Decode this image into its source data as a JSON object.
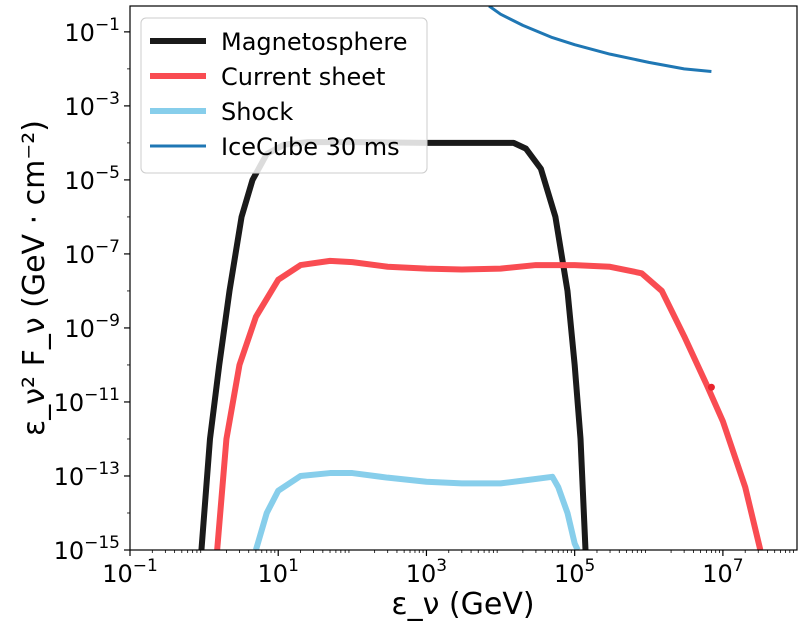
{
  "chart_data": {
    "type": "line",
    "title": "",
    "xlabel": "ε_ν (GeV)",
    "ylabel": "ε_ν² F_ν (GeV · cm⁻²)",
    "xscale": "log",
    "yscale": "log",
    "xlim": [
      0.1,
      100000000
    ],
    "ylim": [
      1e-15,
      0.5
    ],
    "grid": false,
    "legend_position": "top-left",
    "x_ticks": [
      {
        "value": 0.1,
        "base": "10",
        "exp": "−1"
      },
      {
        "value": 10,
        "base": "10",
        "exp": "1"
      },
      {
        "value": 1000,
        "base": "10",
        "exp": "3"
      },
      {
        "value": 100000,
        "base": "10",
        "exp": "5"
      },
      {
        "value": 10000000,
        "base": "10",
        "exp": "7"
      }
    ],
    "y_ticks": [
      {
        "value": 1e-15,
        "base": "10",
        "exp": "−15"
      },
      {
        "value": 1e-13,
        "base": "10",
        "exp": "−13"
      },
      {
        "value": 1e-11,
        "base": "10",
        "exp": "−11"
      },
      {
        "value": 1e-09,
        "base": "10",
        "exp": "−9"
      },
      {
        "value": 1e-07,
        "base": "10",
        "exp": "−7"
      },
      {
        "value": 1e-05,
        "base": "10",
        "exp": "−5"
      },
      {
        "value": 0.001,
        "base": "10",
        "exp": "−3"
      },
      {
        "value": 0.1,
        "base": "10",
        "exp": "−1"
      }
    ],
    "series": [
      {
        "name": "Magnetosphere",
        "color": "#1a1a1a",
        "width": 6,
        "points": [
          [
            0.92,
            1e-15
          ],
          [
            1.2,
            1e-12
          ],
          [
            1.6,
            1e-10
          ],
          [
            2.2,
            1e-08
          ],
          [
            3.2,
            1e-06
          ],
          [
            4.5,
            1e-05
          ],
          [
            7,
            5e-05
          ],
          [
            12,
            9e-05
          ],
          [
            25,
            0.000105
          ],
          [
            100,
            0.000105
          ],
          [
            1000,
            0.0001
          ],
          [
            10000,
            0.0001
          ],
          [
            15000,
            0.0001
          ],
          [
            22000,
            7e-05
          ],
          [
            35000,
            2e-05
          ],
          [
            55000,
            1e-06
          ],
          [
            80000,
            1e-08
          ],
          [
            100000,
            1e-10
          ],
          [
            120000,
            1e-12
          ],
          [
            140000,
            1e-15
          ]
        ]
      },
      {
        "name": "Current sheet",
        "color": "#f94c52",
        "width": 6,
        "points": [
          [
            1.5,
            1e-15
          ],
          [
            2,
            1e-12
          ],
          [
            3,
            1e-10
          ],
          [
            5,
            2e-09
          ],
          [
            10,
            2e-08
          ],
          [
            20,
            5e-08
          ],
          [
            50,
            6.5e-08
          ],
          [
            100,
            6e-08
          ],
          [
            300,
            4.5e-08
          ],
          [
            1000,
            4e-08
          ],
          [
            3000,
            3.8e-08
          ],
          [
            10000,
            4e-08
          ],
          [
            30000,
            5e-08
          ],
          [
            100000,
            5e-08
          ],
          [
            300000,
            4.5e-08
          ],
          [
            800000,
            3e-08
          ],
          [
            1500000,
            1e-08
          ],
          [
            3000000,
            6e-10
          ],
          [
            6000000,
            3e-11
          ],
          [
            10000000,
            3e-12
          ],
          [
            20000000,
            5e-14
          ],
          [
            32000000,
            1e-15
          ]
        ]
      },
      {
        "name": "Shock",
        "color": "#87ceeb",
        "width": 6,
        "points": [
          [
            5,
            1e-15
          ],
          [
            7,
            1e-14
          ],
          [
            10,
            4e-14
          ],
          [
            20,
            1e-13
          ],
          [
            50,
            1.2e-13
          ],
          [
            100,
            1.2e-13
          ],
          [
            300,
            9e-14
          ],
          [
            1000,
            7e-14
          ],
          [
            3000,
            6.3e-14
          ],
          [
            10000,
            6.3e-14
          ],
          [
            20000,
            7.5e-14
          ],
          [
            50000,
            9.5e-14
          ],
          [
            60000,
            5e-14
          ],
          [
            80000,
            1e-14
          ],
          [
            100000,
            1.5e-15
          ],
          [
            110000,
            1e-15
          ]
        ]
      },
      {
        "name": "IceCube 30 ms",
        "color": "#1f77b4",
        "width": 3,
        "points": [
          [
            7000,
            0.5
          ],
          [
            10000,
            0.3
          ],
          [
            20000,
            0.15
          ],
          [
            50000,
            0.07
          ],
          [
            100000,
            0.045
          ],
          [
            300000,
            0.025
          ],
          [
            1000000,
            0.015
          ],
          [
            3000000,
            0.01
          ],
          [
            7000000,
            0.0085
          ]
        ]
      }
    ],
    "markers": [
      {
        "series": "Current sheet",
        "x": 7000000,
        "y": 2.5e-11,
        "color": "#e8242c"
      }
    ]
  }
}
